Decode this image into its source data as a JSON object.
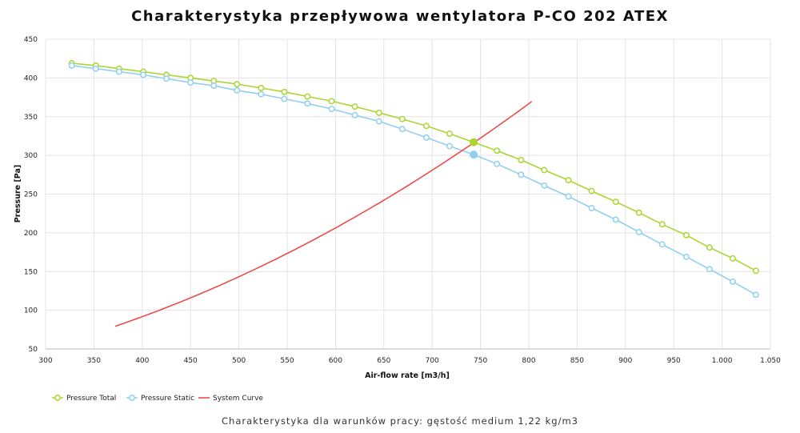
{
  "chart_data": {
    "type": "line",
    "title": "Charakterystyka przepływowa wentylatora P-CO 202 ATEX",
    "subtitle": "Charakterystyka dla warunków pracy: gęstość medium 1,22 kg/m3",
    "xlabel": "Air-flow rate [m3/h]",
    "ylabel": "Pressure [Pa]",
    "xlim": [
      300,
      1050
    ],
    "ylim": [
      50,
      450
    ],
    "xticks": [
      "300",
      "350",
      "400",
      "450",
      "500",
      "550",
      "600",
      "650",
      "700",
      "750",
      "800",
      "850",
      "900",
      "950",
      "1.000",
      "1.050"
    ],
    "yticks": [
      "450",
      "400",
      "350",
      "300",
      "250",
      "200",
      "150",
      "100",
      "50"
    ],
    "xtick_values": [
      300,
      350,
      400,
      450,
      500,
      550,
      600,
      650,
      700,
      750,
      800,
      850,
      900,
      950,
      1000,
      1050
    ],
    "ytick_values": [
      450,
      400,
      350,
      300,
      250,
      200,
      150,
      100,
      50
    ],
    "grid": true,
    "legend_position": "bottom-left",
    "series": [
      {
        "name": "Pressure Total",
        "color": "#a9d62f",
        "marker": "circle",
        "x": [
          327,
          352,
          376,
          401,
          425,
          450,
          474,
          498,
          523,
          547,
          571,
          596,
          620,
          645,
          669,
          694,
          718,
          743,
          767,
          792,
          816,
          841,
          865,
          890,
          914,
          938,
          963,
          987,
          1011,
          1035
        ],
        "y": [
          419,
          416,
          412,
          408,
          404,
          400,
          396,
          392,
          387,
          382,
          376,
          370,
          363,
          355,
          347,
          338,
          328,
          317,
          306,
          294,
          281,
          268,
          254,
          240,
          226,
          211,
          197,
          181,
          167,
          151
        ]
      },
      {
        "name": "Pressure Static",
        "color": "#8fd0f0",
        "marker": "circle",
        "x": [
          327,
          352,
          376,
          401,
          425,
          450,
          474,
          498,
          523,
          547,
          571,
          596,
          620,
          645,
          669,
          694,
          718,
          743,
          767,
          792,
          816,
          841,
          865,
          890,
          914,
          938,
          963,
          987,
          1011,
          1035
        ],
        "y": [
          416,
          412,
          408,
          404,
          399,
          394,
          390,
          384,
          379,
          373,
          367,
          360,
          352,
          344,
          334,
          323,
          312,
          301,
          289,
          275,
          261,
          247,
          232,
          217,
          201,
          185,
          169,
          153,
          137,
          120
        ]
      },
      {
        "name": "System Curve",
        "color": "#f04040",
        "marker": "none",
        "x_range": [
          372,
          803
        ],
        "equation_coefficient": 0.000573,
        "exponent": 2
      }
    ],
    "operating_points": [
      {
        "series": "Pressure Total",
        "x": 743,
        "y": 317
      },
      {
        "series": "Pressure Static",
        "x": 743,
        "y": 301
      }
    ],
    "colors": {
      "grid": "#e4e4e4",
      "axis": "#bbbbbb"
    }
  }
}
